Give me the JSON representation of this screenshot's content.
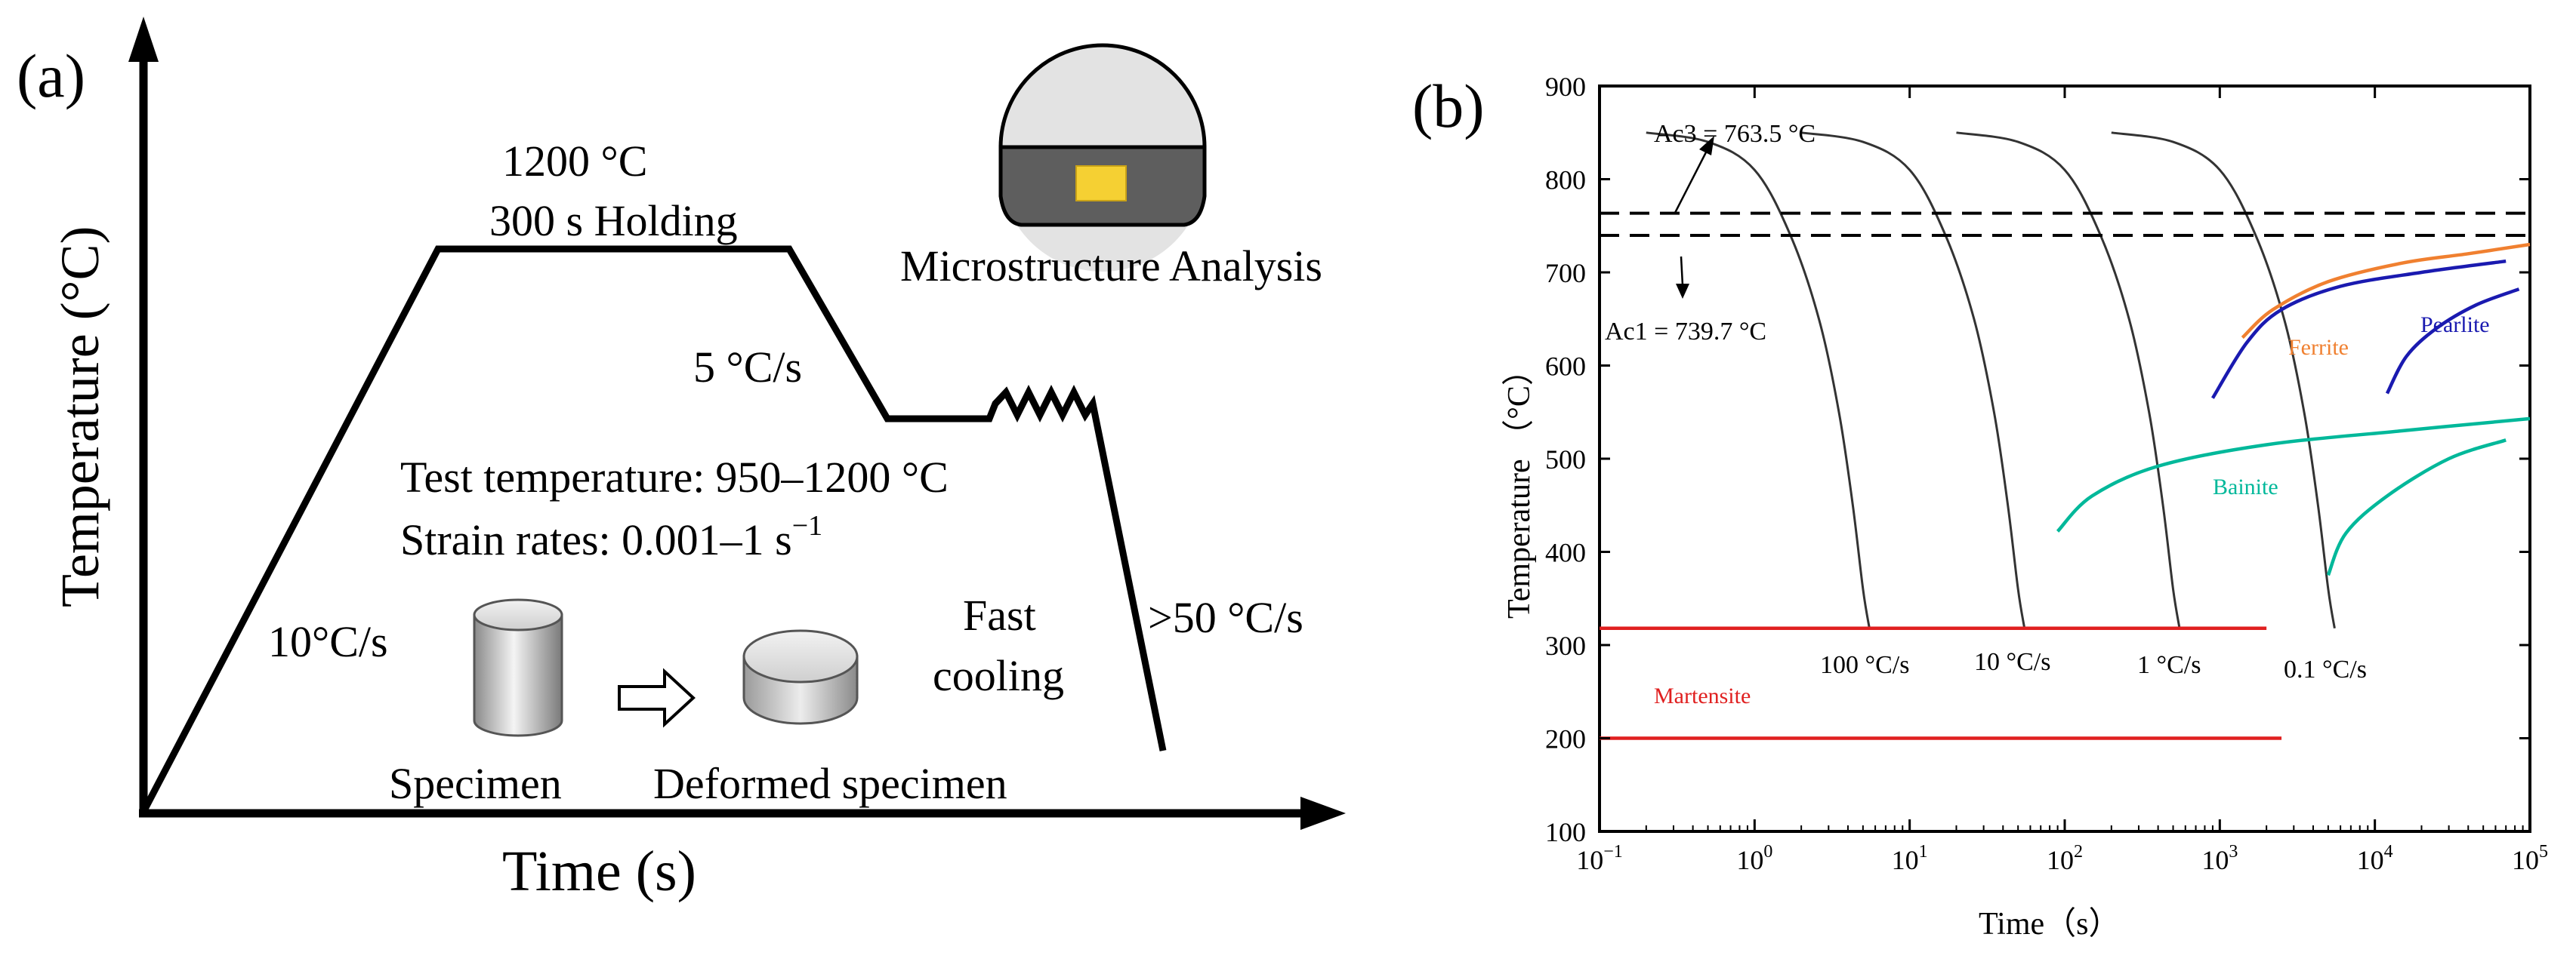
{
  "panel_a": {
    "label": "(a)",
    "y_axis_label": "Temperature (°C)",
    "x_axis_label": "Time (s)",
    "holding_temp": "1200 °C",
    "holding_time": "300 s Holding",
    "heating_rate": "10°C/s",
    "cooling_rate_1": "5 °C/s",
    "test_temp_label": "Test temperature:",
    "test_temp_value": "950–1200 °C",
    "strain_rates_label": "Strain rates: 0.001–1 s",
    "strain_rates_exp": "−1",
    "fast": "Fast",
    "cooling": "cooling",
    "quench_rate": ">50 °C/s",
    "specimen": "Specimen",
    "deformed_specimen": "Deformed specimen",
    "microstructure": "Microstructure Analysis",
    "colors": {
      "line": "#000000",
      "sample_dark": "#5e5e5e",
      "sample_light": "#e3e3e3",
      "inclusion": "#f5d033"
    }
  },
  "chart_data": {
    "type": "line",
    "label": "(b)",
    "title": "",
    "xlabel": "Time（s）",
    "ylabel": "Temperature （°C）",
    "x_scale": "log",
    "xlim": [
      0.1,
      100000
    ],
    "ylim": [
      100,
      900
    ],
    "x_ticks": [
      {
        "base": "10",
        "exp": "−1",
        "value": 0.1
      },
      {
        "base": "10",
        "exp": "0",
        "value": 1
      },
      {
        "base": "10",
        "exp": "1",
        "value": 10
      },
      {
        "base": "10",
        "exp": "2",
        "value": 100
      },
      {
        "base": "10",
        "exp": "3",
        "value": 1000
      },
      {
        "base": "10",
        "exp": "4",
        "value": 10000
      },
      {
        "base": "10",
        "exp": "5",
        "value": 100000
      }
    ],
    "y_ticks": [
      100,
      200,
      300,
      400,
      500,
      600,
      700,
      800,
      900
    ],
    "reference_lines": [
      {
        "name": "Ac3",
        "label": "Ac3 = 763.5 °C",
        "y": 763.5
      },
      {
        "name": "Ac1",
        "label": "Ac1 = 739.7 °C",
        "y": 739.7
      }
    ],
    "cooling_curves": [
      {
        "label": "100 °C/s",
        "points": [
          [
            0.2,
            850
          ],
          [
            0.5,
            840
          ],
          [
            1.0,
            810
          ],
          [
            1.7,
            740
          ],
          [
            2.6,
            650
          ],
          [
            3.5,
            550
          ],
          [
            4.3,
            450
          ],
          [
            5.0,
            360
          ],
          [
            5.5,
            318
          ]
        ]
      },
      {
        "label": "10 °C/s",
        "points": [
          [
            2,
            850
          ],
          [
            5,
            840
          ],
          [
            10,
            810
          ],
          [
            17,
            740
          ],
          [
            26,
            650
          ],
          [
            35,
            550
          ],
          [
            43,
            450
          ],
          [
            50,
            360
          ],
          [
            55,
            318
          ]
        ]
      },
      {
        "label": "1 °C/s",
        "points": [
          [
            20,
            850
          ],
          [
            50,
            840
          ],
          [
            100,
            810
          ],
          [
            170,
            740
          ],
          [
            260,
            650
          ],
          [
            350,
            550
          ],
          [
            430,
            450
          ],
          [
            500,
            360
          ],
          [
            550,
            318
          ]
        ]
      },
      {
        "label": "0.1 °C/s",
        "points": [
          [
            200,
            850
          ],
          [
            500,
            840
          ],
          [
            1000,
            810
          ],
          [
            1700,
            740
          ],
          [
            2600,
            650
          ],
          [
            3500,
            550
          ],
          [
            4300,
            450
          ],
          [
            5000,
            360
          ],
          [
            5500,
            318
          ]
        ]
      }
    ],
    "phase_curves": [
      {
        "name": "Ferrite",
        "color": "#f08030",
        "points": [
          [
            1400,
            630
          ],
          [
            2200,
            660
          ],
          [
            5000,
            690
          ],
          [
            15000,
            710
          ],
          [
            40000,
            720
          ],
          [
            100000,
            730
          ]
        ]
      },
      {
        "name": "Pearlite upper",
        "color": "#1a1ab0",
        "points": [
          [
            900,
            565
          ],
          [
            1500,
            625
          ],
          [
            2500,
            660
          ],
          [
            6000,
            685
          ],
          [
            20000,
            700
          ],
          [
            70000,
            712
          ]
        ]
      },
      {
        "name": "Pearlite",
        "color": "#1a1ab0",
        "points": [
          [
            12000,
            570
          ],
          [
            16000,
            610
          ],
          [
            25000,
            640
          ],
          [
            45000,
            665
          ],
          [
            85000,
            682
          ]
        ]
      },
      {
        "name": "Bainite",
        "color": "#00b89a",
        "points": [
          [
            90,
            422
          ],
          [
            150,
            460
          ],
          [
            400,
            492
          ],
          [
            2000,
            515
          ],
          [
            15000,
            530
          ],
          [
            100000,
            543
          ]
        ]
      },
      {
        "name": "Bainite lower",
        "color": "#00b89a",
        "points": [
          [
            5000,
            375
          ],
          [
            6500,
            420
          ],
          [
            12000,
            460
          ],
          [
            30000,
            500
          ],
          [
            70000,
            520
          ]
        ]
      },
      {
        "name": "Martensite start",
        "color": "#e02020",
        "points": [
          [
            0.1,
            318
          ],
          [
            2000,
            318
          ]
        ]
      },
      {
        "name": "Martensite",
        "color": "#e02020",
        "points": [
          [
            0.1,
            200
          ],
          [
            2500,
            200
          ]
        ]
      }
    ],
    "phase_labels": {
      "ferrite": "Ferrite",
      "pearlite": "Pearlite",
      "bainite": "Bainite",
      "martensite": "Martensite"
    },
    "colors": {
      "axis": "#000000",
      "curve": "#333333"
    }
  }
}
